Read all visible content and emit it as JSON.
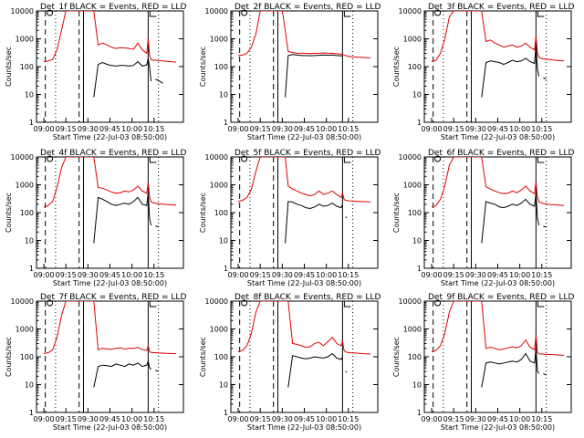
{
  "figure": {
    "ylabel": "Counts/sec",
    "xlabel": "Start Time (22-Jul-03 08:50:00)",
    "y_ticks": [
      "1",
      "10",
      "100",
      "1000",
      "10000"
    ],
    "colors": {
      "events": "#000000",
      "lld": "#e00000"
    }
  },
  "chart_data": [
    {
      "type": "line",
      "title": "Det_1f BLACK = Events, RED = LLD",
      "x_ticks": [
        "09:00",
        "09:15",
        "09:30",
        "09:45",
        "10:00",
        "10:15"
      ],
      "ylim": [
        1,
        10000
      ],
      "yscale": "log",
      "x_minutes": [
        0,
        3,
        6,
        9,
        12,
        15,
        18,
        21,
        24,
        26,
        28,
        30,
        32,
        34,
        37,
        40,
        43,
        46,
        49,
        52,
        55,
        58,
        61,
        64,
        67,
        70,
        71,
        72,
        73,
        74,
        76,
        78,
        81,
        84,
        87,
        90
      ],
      "series": [
        {
          "name": "Events",
          "values": [
            null,
            null,
            null,
            null,
            null,
            null,
            null,
            null,
            null,
            null,
            null,
            null,
            null,
            8,
            120,
            140,
            120,
            110,
            105,
            110,
            110,
            105,
            110,
            150,
            105,
            115,
            200,
            90,
            30,
            null,
            35,
            32,
            25,
            null,
            null,
            null
          ]
        },
        {
          "name": "LLD",
          "values": [
            150,
            160,
            180,
            400,
            2000,
            10000,
            10000,
            10000,
            10000,
            10000,
            10000,
            10000,
            10000,
            10000,
            600,
            700,
            600,
            500,
            450,
            480,
            470,
            450,
            420,
            700,
            400,
            300,
            1000,
            250,
            180,
            170,
            170,
            165,
            160,
            155,
            150,
            145
          ]
        }
      ]
    },
    {
      "type": "line",
      "title": "Det_2f BLACK = Events, RED = LLD",
      "x_ticks": [
        "09:00",
        "09:15",
        "09:30",
        "09:45",
        "10:00",
        "10:15"
      ],
      "ylim": [
        1,
        10000
      ],
      "yscale": "log",
      "x_minutes": [
        0,
        3,
        6,
        9,
        12,
        15,
        18,
        21,
        24,
        26,
        28,
        30,
        32,
        34,
        37,
        40,
        43,
        46,
        49,
        52,
        55,
        58,
        61,
        64,
        67,
        70,
        71,
        72,
        73,
        74,
        76,
        78,
        81,
        84,
        87,
        90
      ],
      "series": [
        {
          "name": "Events",
          "values": [
            null,
            null,
            null,
            null,
            null,
            null,
            null,
            null,
            null,
            null,
            null,
            null,
            8,
            250,
            270,
            260,
            250,
            250,
            245,
            250,
            255,
            260,
            255,
            260,
            250,
            245,
            240,
            null,
            null,
            null,
            null,
            null,
            null,
            null,
            null,
            null
          ]
        },
        {
          "name": "LLD",
          "values": [
            250,
            260,
            300,
            500,
            1500,
            10000,
            10000,
            10000,
            10000,
            10000,
            10000,
            10000,
            2000,
            350,
            320,
            300,
            300,
            300,
            290,
            300,
            300,
            310,
            300,
            300,
            290,
            280,
            270,
            260,
            250,
            240,
            230,
            225,
            220,
            215,
            210,
            205
          ]
        }
      ]
    },
    {
      "type": "line",
      "title": "Det_3f BLACK = Events, RED = LLD",
      "x_ticks": [
        "09:00",
        "09:15",
        "09:30",
        "09:45",
        "10:00",
        "10:15"
      ],
      "ylim": [
        1,
        10000
      ],
      "yscale": "log",
      "x_minutes": [
        0,
        3,
        6,
        9,
        12,
        15,
        18,
        21,
        24,
        26,
        28,
        30,
        32,
        34,
        37,
        40,
        43,
        46,
        49,
        52,
        55,
        58,
        61,
        64,
        67,
        70,
        71,
        72,
        73,
        74,
        76,
        78,
        81,
        84,
        87,
        90
      ],
      "series": [
        {
          "name": "Events",
          "values": [
            null,
            null,
            null,
            null,
            null,
            null,
            null,
            null,
            null,
            null,
            null,
            null,
            null,
            8,
            140,
            160,
            150,
            140,
            120,
            140,
            170,
            150,
            160,
            200,
            150,
            130,
            600,
            80,
            45,
            null,
            40,
            35,
            null,
            null,
            null,
            null
          ]
        },
        {
          "name": "LLD",
          "values": [
            150,
            170,
            300,
            1000,
            6000,
            10000,
            10000,
            10000,
            10000,
            10000,
            10000,
            10000,
            10000,
            10000,
            800,
            900,
            700,
            600,
            500,
            550,
            600,
            500,
            550,
            700,
            500,
            400,
            1200,
            300,
            220,
            200,
            190,
            185,
            180,
            170,
            165,
            160
          ]
        }
      ]
    },
    {
      "type": "line",
      "title": "Det_4f BLACK = Events, RED = LLD",
      "x_ticks": [
        "09:00",
        "09:15",
        "09:30",
        "09:45",
        "10:00",
        "10:15"
      ],
      "ylim": [
        1,
        10000
      ],
      "yscale": "log",
      "x_minutes": [
        0,
        3,
        6,
        9,
        12,
        15,
        18,
        21,
        24,
        26,
        28,
        30,
        32,
        34,
        37,
        40,
        43,
        46,
        49,
        52,
        55,
        58,
        61,
        64,
        67,
        70,
        71,
        72,
        73,
        74,
        76,
        78,
        81,
        84,
        87,
        90
      ],
      "series": [
        {
          "name": "Events",
          "values": [
            null,
            null,
            null,
            null,
            null,
            null,
            null,
            null,
            null,
            null,
            null,
            null,
            null,
            8,
            350,
            300,
            250,
            200,
            180,
            200,
            220,
            200,
            250,
            350,
            200,
            180,
            500,
            60,
            35,
            null,
            33,
            30,
            null,
            null,
            null,
            null
          ]
        },
        {
          "name": "LLD",
          "values": [
            160,
            180,
            250,
            800,
            4000,
            10000,
            10000,
            10000,
            10000,
            10000,
            10000,
            10000,
            10000,
            10000,
            800,
            750,
            650,
            550,
            500,
            520,
            600,
            550,
            650,
            900,
            600,
            500,
            1200,
            350,
            250,
            230,
            220,
            210,
            200,
            195,
            190,
            185
          ]
        }
      ]
    },
    {
      "type": "line",
      "title": "Det_5f BLACK = Events, RED = LLD",
      "x_ticks": [
        "09:00",
        "09:15",
        "09:30",
        "09:45",
        "10:00",
        "10:15"
      ],
      "ylim": [
        1,
        10000
      ],
      "yscale": "log",
      "x_minutes": [
        0,
        3,
        6,
        9,
        12,
        15,
        18,
        21,
        24,
        26,
        28,
        30,
        32,
        34,
        37,
        40,
        43,
        46,
        49,
        52,
        55,
        58,
        61,
        64,
        67,
        70,
        71,
        72,
        73,
        74,
        76,
        78,
        81,
        84,
        87,
        90
      ],
      "series": [
        {
          "name": "Events",
          "values": [
            null,
            null,
            null,
            null,
            null,
            null,
            null,
            null,
            null,
            null,
            null,
            null,
            8,
            250,
            240,
            200,
            180,
            150,
            140,
            160,
            200,
            170,
            180,
            220,
            170,
            150,
            200,
            null,
            70,
            65,
            null,
            null,
            null,
            null,
            null,
            null
          ]
        },
        {
          "name": "LLD",
          "values": [
            250,
            280,
            350,
            700,
            3000,
            10000,
            10000,
            10000,
            10000,
            10000,
            10000,
            10000,
            10000,
            900,
            700,
            600,
            500,
            450,
            400,
            450,
            600,
            450,
            500,
            600,
            450,
            350,
            500,
            300,
            280,
            270,
            265,
            260,
            255,
            250,
            245,
            240
          ]
        }
      ]
    },
    {
      "type": "line",
      "title": "Det_6f BLACK = Events, RED = LLD",
      "x_ticks": [
        "09:00",
        "09:15",
        "09:30",
        "09:45",
        "10:00",
        "10:15"
      ],
      "ylim": [
        1,
        10000
      ],
      "yscale": "log",
      "x_minutes": [
        0,
        3,
        6,
        9,
        12,
        15,
        18,
        21,
        24,
        26,
        28,
        30,
        32,
        34,
        37,
        40,
        43,
        46,
        49,
        52,
        55,
        58,
        61,
        64,
        67,
        70,
        71,
        72,
        73,
        74,
        76,
        78,
        81,
        84,
        87,
        90
      ],
      "series": [
        {
          "name": "Events",
          "values": [
            null,
            null,
            null,
            null,
            null,
            null,
            null,
            null,
            null,
            null,
            null,
            null,
            null,
            8,
            250,
            220,
            200,
            160,
            150,
            170,
            200,
            180,
            220,
            300,
            200,
            170,
            500,
            60,
            35,
            null,
            32,
            30,
            null,
            null,
            null,
            null
          ]
        },
        {
          "name": "LLD",
          "values": [
            160,
            180,
            300,
            900,
            5000,
            10000,
            10000,
            10000,
            10000,
            10000,
            10000,
            10000,
            10000,
            10000,
            850,
            700,
            600,
            520,
            480,
            500,
            600,
            520,
            650,
            900,
            600,
            480,
            1300,
            350,
            250,
            230,
            215,
            205,
            195,
            190,
            185,
            180
          ]
        }
      ]
    },
    {
      "type": "line",
      "title": "Det_7f BLACK = Events, RED = LLD",
      "x_ticks": [
        "09:00",
        "09:15",
        "09:30",
        "09:45",
        "10:00",
        "10:15"
      ],
      "ylim": [
        1,
        10000
      ],
      "yscale": "log",
      "x_minutes": [
        0,
        3,
        6,
        9,
        12,
        15,
        18,
        21,
        24,
        26,
        28,
        30,
        32,
        34,
        37,
        40,
        43,
        46,
        49,
        52,
        55,
        58,
        61,
        64,
        67,
        70,
        71,
        72,
        73,
        74,
        76,
        78,
        81,
        84,
        87,
        90
      ],
      "series": [
        {
          "name": "Events",
          "values": [
            null,
            null,
            null,
            null,
            null,
            null,
            null,
            null,
            null,
            null,
            null,
            null,
            null,
            8,
            45,
            50,
            48,
            45,
            55,
            50,
            45,
            55,
            50,
            60,
            45,
            50,
            70,
            40,
            35,
            null,
            33,
            30,
            null,
            null,
            null,
            null
          ]
        },
        {
          "name": "LLD",
          "values": [
            130,
            140,
            180,
            500,
            3000,
            10000,
            10000,
            10000,
            10000,
            10000,
            10000,
            10000,
            10000,
            10000,
            180,
            200,
            190,
            185,
            200,
            210,
            190,
            200,
            200,
            220,
            180,
            170,
            250,
            150,
            145,
            140,
            140,
            138,
            135,
            132,
            130,
            130
          ]
        }
      ]
    },
    {
      "type": "line",
      "title": "Det_8f BLACK = Events, RED = LLD",
      "x_ticks": [
        "09:00",
        "09:15",
        "09:30",
        "09:45",
        "10:00",
        "10:15"
      ],
      "ylim": [
        1,
        10000
      ],
      "yscale": "log",
      "x_minutes": [
        0,
        3,
        6,
        9,
        12,
        15,
        18,
        21,
        24,
        26,
        28,
        30,
        32,
        34,
        37,
        40,
        43,
        46,
        49,
        52,
        55,
        58,
        61,
        64,
        67,
        70,
        71,
        72,
        73,
        74,
        76,
        78,
        81,
        84,
        87,
        90
      ],
      "series": [
        {
          "name": "Events",
          "values": [
            null,
            null,
            null,
            null,
            null,
            null,
            null,
            null,
            null,
            null,
            null,
            null,
            null,
            8,
            110,
            100,
            90,
            85,
            90,
            100,
            95,
            90,
            100,
            130,
            90,
            80,
            100,
            null,
            30,
            28,
            null,
            null,
            null,
            null,
            null,
            null
          ]
        },
        {
          "name": "LLD",
          "values": [
            150,
            170,
            250,
            700,
            4000,
            10000,
            10000,
            10000,
            10000,
            10000,
            10000,
            10000,
            10000,
            10000,
            300,
            280,
            250,
            220,
            230,
            300,
            330,
            250,
            350,
            500,
            300,
            250,
            350,
            170,
            150,
            145,
            140,
            138,
            135,
            130,
            128,
            125
          ]
        }
      ]
    },
    {
      "type": "line",
      "title": "Det_9f BLACK = Events, RED = LLD",
      "x_ticks": [
        "09:00",
        "09:15",
        "09:30",
        "09:45",
        "10:00",
        "10:15"
      ],
      "ylim": [
        1,
        10000
      ],
      "yscale": "log",
      "x_minutes": [
        0,
        3,
        6,
        9,
        12,
        15,
        18,
        21,
        24,
        26,
        28,
        30,
        32,
        34,
        37,
        40,
        43,
        46,
        49,
        52,
        55,
        58,
        61,
        64,
        67,
        70,
        71,
        72,
        73,
        74,
        76,
        78,
        81,
        84,
        87,
        90
      ],
      "series": [
        {
          "name": "Events",
          "values": [
            null,
            null,
            null,
            null,
            null,
            null,
            null,
            null,
            null,
            null,
            null,
            null,
            null,
            8,
            60,
            65,
            60,
            55,
            60,
            65,
            70,
            65,
            80,
            130,
            70,
            60,
            200,
            30,
            25,
            null,
            25,
            22,
            null,
            null,
            null,
            null
          ]
        },
        {
          "name": "LLD",
          "values": [
            150,
            170,
            250,
            700,
            4000,
            10000,
            10000,
            10000,
            10000,
            10000,
            10000,
            10000,
            10000,
            10000,
            200,
            220,
            200,
            180,
            190,
            210,
            230,
            210,
            250,
            400,
            220,
            180,
            600,
            140,
            130,
            125,
            125,
            122,
            120,
            118,
            115,
            112
          ]
        }
      ]
    }
  ]
}
